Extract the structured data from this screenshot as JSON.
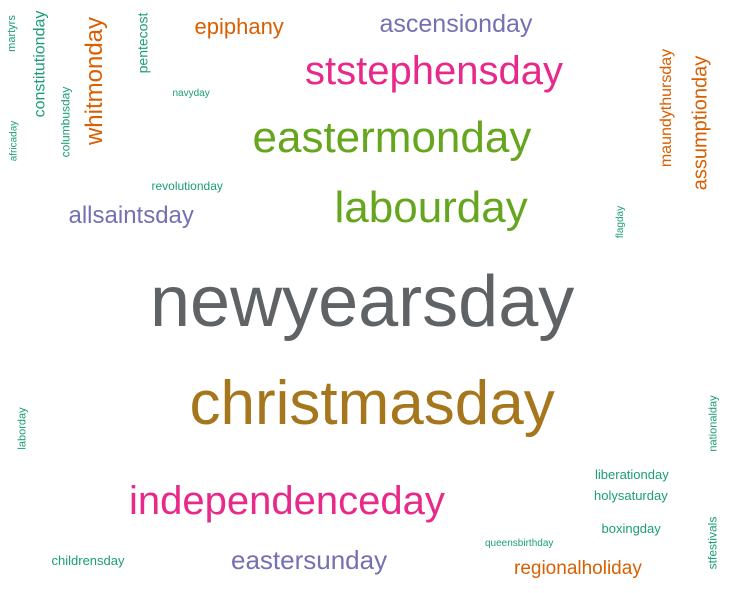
{
  "palette": {
    "gray": "#5f6366",
    "gold": "#a6761d",
    "green": "#66a61e",
    "magenta": "#e7298a",
    "purple": "#7570b3",
    "orange": "#d95f02",
    "teal": "#1b9e77"
  },
  "words": [
    {
      "text": "newyearsday",
      "color": "#5f6366",
      "orientation": "horizontal"
    },
    {
      "text": "christmasday",
      "color": "#a6761d",
      "orientation": "horizontal"
    },
    {
      "text": "eastermonday",
      "color": "#66a61e",
      "orientation": "horizontal"
    },
    {
      "text": "ststephensday",
      "color": "#e7298a",
      "orientation": "horizontal"
    },
    {
      "text": "labourday",
      "color": "#66a61e",
      "orientation": "horizontal"
    },
    {
      "text": "independenceday",
      "color": "#e7298a",
      "orientation": "horizontal"
    },
    {
      "text": "ascensionday",
      "color": "#7570b3",
      "orientation": "horizontal"
    },
    {
      "text": "epiphany",
      "color": "#d95f02",
      "orientation": "horizontal"
    },
    {
      "text": "allsaintsday",
      "color": "#7570b3",
      "orientation": "horizontal"
    },
    {
      "text": "eastersunday",
      "color": "#7570b3",
      "orientation": "horizontal"
    },
    {
      "text": "regionalholiday",
      "color": "#d95f02",
      "orientation": "horizontal"
    },
    {
      "text": "whitmonday",
      "color": "#d95f02",
      "orientation": "vertical"
    },
    {
      "text": "assumptionday",
      "color": "#d95f02",
      "orientation": "vertical"
    },
    {
      "text": "maundythursday",
      "color": "#d95f02",
      "orientation": "vertical"
    },
    {
      "text": "constitutionday",
      "color": "#1b9e77",
      "orientation": "vertical"
    },
    {
      "text": "pentecost",
      "color": "#1b9e77",
      "orientation": "vertical"
    },
    {
      "text": "columbusday",
      "color": "#1b9e77",
      "orientation": "vertical"
    },
    {
      "text": "martyrs",
      "color": "#1b9e77",
      "orientation": "vertical"
    },
    {
      "text": "africaday",
      "color": "#1b9e77",
      "orientation": "vertical"
    },
    {
      "text": "navyday",
      "color": "#1b9e77",
      "orientation": "horizontal"
    },
    {
      "text": "revolutionday",
      "color": "#1b9e77",
      "orientation": "horizontal"
    },
    {
      "text": "flagday",
      "color": "#1b9e77",
      "orientation": "vertical"
    },
    {
      "text": "laborday",
      "color": "#1b9e77",
      "orientation": "vertical"
    },
    {
      "text": "nationalday",
      "color": "#1b9e77",
      "orientation": "vertical"
    },
    {
      "text": "liberationday",
      "color": "#1b9e77",
      "orientation": "horizontal"
    },
    {
      "text": "holysaturday",
      "color": "#1b9e77",
      "orientation": "horizontal"
    },
    {
      "text": "boxingday",
      "color": "#1b9e77",
      "orientation": "horizontal"
    },
    {
      "text": "stfestivals",
      "color": "#1b9e77",
      "orientation": "vertical"
    },
    {
      "text": "queensbirthday",
      "color": "#1b9e77",
      "orientation": "horizontal"
    },
    {
      "text": "childrensday",
      "color": "#1b9e77",
      "orientation": "horizontal"
    }
  ]
}
